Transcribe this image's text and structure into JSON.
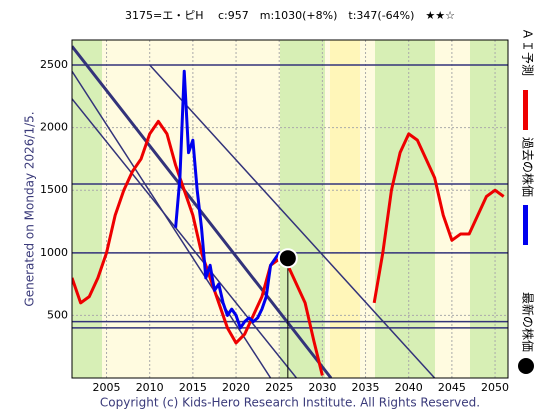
{
  "chart_data": {
    "type": "line",
    "title": "3175=エ・ピH　 c:957　m:1030(+8%)　t:347(-64%)　★★☆",
    "side_label": "Generated on Monday 2026/1/5.",
    "footer": "Copyright (c) Kids-Hero Research Institute. All Rights Reserved.",
    "xlim": [
      2001,
      2051.5
    ],
    "ylim": [
      0,
      2700
    ],
    "xticks": [
      2005,
      2010,
      2015,
      2020,
      2025,
      2030,
      2035,
      2040,
      2045,
      2050
    ],
    "yticks": [
      500,
      1000,
      1500,
      2000,
      2500
    ],
    "series": [
      {
        "name": "ＡＩ予測",
        "color": "#ee0000",
        "x": [
          2001,
          2002,
          2003,
          2004,
          2005,
          2006,
          2007,
          2008,
          2009,
          2010,
          2011,
          2012,
          2013,
          2014,
          2015,
          2016,
          2017,
          2018,
          2019,
          2020,
          2021,
          2022,
          2023,
          2024,
          2025,
          2026,
          2027,
          2028,
          2029,
          2030,
          2031,
          2035,
          2036,
          2037,
          2038,
          2039,
          2040,
          2041,
          2042,
          2043,
          2044,
          2045,
          2046,
          2047,
          2048,
          2049,
          2050,
          2051
        ],
        "values": [
          800,
          600,
          650,
          800,
          1000,
          1300,
          1500,
          1650,
          1750,
          1950,
          2050,
          1950,
          1700,
          1500,
          1300,
          1000,
          800,
          600,
          400,
          280,
          350,
          500,
          650,
          900,
          950,
          900,
          750,
          600,
          300,
          20,
          null,
          null,
          600,
          1000,
          1500,
          1800,
          1950,
          1900,
          1750,
          1600,
          1300,
          1100,
          1150,
          1150,
          1300,
          1450,
          1500,
          1450
        ]
      },
      {
        "name": "過去の株価",
        "color": "#0000ee",
        "x": [
          2013,
          2013.5,
          2014,
          2014.5,
          2015,
          2015.5,
          2016,
          2016.5,
          2017,
          2017.5,
          2018,
          2018.5,
          2019,
          2019.5,
          2020,
          2020.5,
          2021,
          2021.5,
          2022,
          2022.5,
          2023,
          2023.5,
          2024,
          2024.5,
          2025,
          2025.5,
          2026
        ],
        "values": [
          1200,
          1600,
          2450,
          1800,
          1900,
          1500,
          1200,
          800,
          900,
          700,
          750,
          600,
          500,
          550,
          500,
          400,
          450,
          480,
          450,
          480,
          550,
          650,
          900,
          950,
          1000,
          980,
          960
        ]
      }
    ],
    "latest": {
      "name": "最新の株価",
      "x": 2026,
      "value": 957
    },
    "levels": [
      2500,
      1550,
      1000,
      450,
      400
    ],
    "trend_lines": [
      {
        "x": [
          2001,
          2031
        ],
        "values": [
          2650,
          0
        ],
        "width": 3
      },
      {
        "x": [
          2001,
          2024
        ],
        "values": [
          2450,
          0
        ],
        "width": 1.5
      },
      {
        "x": [
          2001,
          2027
        ],
        "values": [
          2230,
          0
        ],
        "width": 1.5
      },
      {
        "x": [
          2010,
          2043
        ],
        "values": [
          2500,
          0
        ],
        "width": 1.5
      }
    ]
  }
}
